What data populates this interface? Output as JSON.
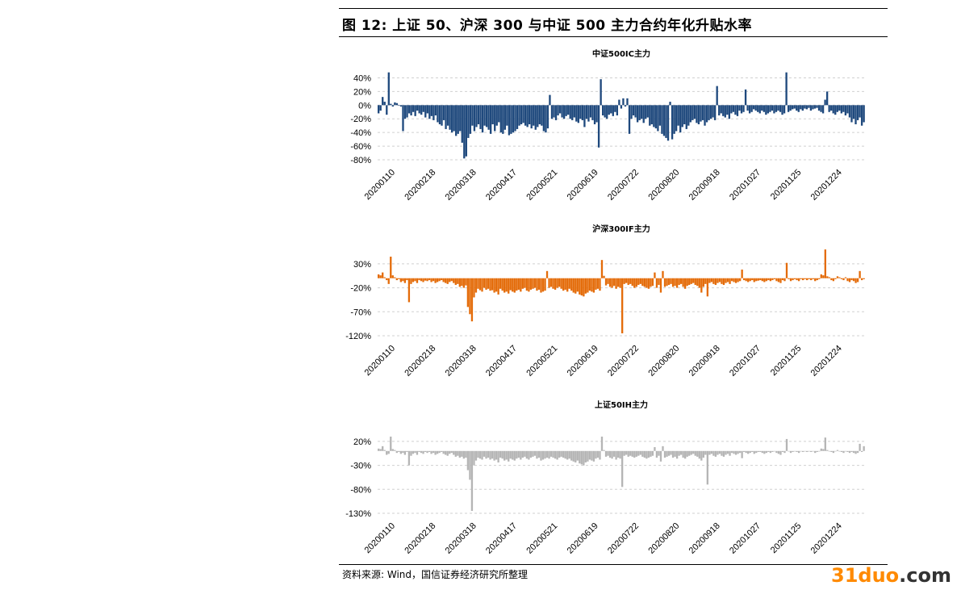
{
  "figure": {
    "title": "图 12: 上证 50、沪深 300 与中证 500 主力合约年化升贴水率",
    "source": "资料来源: Wind，国信证券经济研究所整理",
    "watermark": {
      "num": "31",
      "word": "duo",
      "tld": ".com"
    }
  },
  "chart_data": [
    {
      "type": "bar",
      "title": "中证500IC主力",
      "color": "#1f497d",
      "ylim": [
        -80,
        50
      ],
      "yticks": [
        "40%",
        "20%",
        "0%",
        "-20%",
        "-40%",
        "-60%",
        "-80%"
      ],
      "ytick_values": [
        40,
        20,
        0,
        -20,
        -40,
        -60,
        -80
      ],
      "xticks": [
        "20200110",
        "20200218",
        "20200318",
        "20200417",
        "20200521",
        "20200619",
        "20200722",
        "20200820",
        "20200918",
        "20201027",
        "20201125",
        "20201224"
      ],
      "grid": true,
      "values": [
        -12,
        -8,
        12,
        5,
        -14,
        48,
        2,
        -2,
        4,
        3,
        0,
        -2,
        -38,
        -20,
        -18,
        -12,
        -15,
        -10,
        -16,
        -8,
        -12,
        -14,
        -10,
        -18,
        -12,
        -20,
        -16,
        -22,
        -15,
        -25,
        -28,
        -30,
        -22,
        -35,
        -30,
        -36,
        -40,
        -38,
        -45,
        -42,
        -38,
        -55,
        -78,
        -75,
        -48,
        -42,
        -30,
        -38,
        -32,
        -28,
        -35,
        -40,
        -30,
        -32,
        -36,
        -42,
        -28,
        -38,
        -30,
        -25,
        -40,
        -42,
        -36,
        -30,
        -44,
        -42,
        -40,
        -38,
        -35,
        -30,
        -28,
        -26,
        -30,
        -32,
        -28,
        -34,
        -30,
        -36,
        -32,
        -28,
        -30,
        -38,
        -40,
        -34,
        15,
        -20,
        -18,
        -22,
        -15,
        -12,
        -18,
        -20,
        -16,
        -14,
        -20,
        -22,
        -18,
        -24,
        -26,
        -20,
        -22,
        -32,
        -20,
        -24,
        -18,
        -22,
        -28,
        -25,
        -62,
        38,
        -15,
        -18,
        -20,
        -14,
        -12,
        -16,
        -10,
        -15,
        8,
        -5,
        10,
        -2,
        10,
        -42,
        -20,
        -15,
        -18,
        -25,
        -22,
        -20,
        -26,
        -20,
        -18,
        -30,
        -28,
        -32,
        -34,
        -38,
        -30,
        -42,
        -45,
        -48,
        -52,
        5,
        -50,
        -42,
        -38,
        -30,
        -40,
        -32,
        -28,
        -35,
        -30,
        -25,
        -22,
        -20,
        -26,
        -28,
        -24,
        -22,
        -30,
        -25,
        -22,
        -20,
        -18,
        -22,
        28,
        -15,
        -12,
        -16,
        -18,
        -14,
        -20,
        -12,
        -10,
        -14,
        -16,
        -8,
        -12,
        -10,
        23,
        -8,
        -12,
        -10,
        -6,
        -8,
        -10,
        -12,
        -8,
        -10,
        -14,
        -12,
        -10,
        -8,
        -12,
        -10,
        -8,
        -10,
        -14,
        -12,
        48,
        -10,
        -8,
        -6,
        -5,
        -8,
        -10,
        -6,
        -8,
        -5,
        -6,
        -4,
        -8,
        -6,
        -5,
        -4,
        -8,
        -10,
        -12,
        8,
        20,
        -10,
        -8,
        -12,
        -14,
        -10,
        -8,
        -12,
        -10,
        -15,
        -12,
        -18,
        -25,
        -20,
        -28,
        -22,
        -18,
        -30,
        -25
      ]
    },
    {
      "type": "bar",
      "title": "沪深300IF主力",
      "color": "#e46c0a",
      "ylim": [
        -120,
        45
      ],
      "yticks": [
        "30%",
        "-20%",
        "-70%",
        "-120%"
      ],
      "ytick_values": [
        30,
        -20,
        -70,
        -120
      ],
      "xticks": [
        "20200110",
        "20200218",
        "20200318",
        "20200417",
        "20200521",
        "20200619",
        "20200722",
        "20200820",
        "20200918",
        "20201027",
        "20201125",
        "20201224"
      ],
      "grid": true,
      "values": [
        8,
        6,
        12,
        2,
        -4,
        -12,
        45,
        6,
        2,
        -4,
        -2,
        -8,
        -6,
        -10,
        -4,
        -50,
        -12,
        -8,
        -6,
        -10,
        -4,
        -6,
        -8,
        -5,
        -6,
        -4,
        -8,
        -6,
        -10,
        -8,
        -6,
        -4,
        -8,
        -10,
        -12,
        -8,
        -6,
        -10,
        -14,
        -12,
        -18,
        -16,
        -20,
        -15,
        -60,
        -75,
        -90,
        -40,
        -30,
        -22,
        -25,
        -28,
        -20,
        -24,
        -22,
        -26,
        -25,
        -30,
        -28,
        -34,
        -22,
        -26,
        -30,
        -28,
        -32,
        -25,
        -28,
        -30,
        -26,
        -24,
        -28,
        -22,
        -20,
        -26,
        -28,
        -24,
        -22,
        -20,
        -26,
        -24,
        -30,
        -28,
        -26,
        15,
        -20,
        -18,
        -22,
        -24,
        -20,
        -18,
        -22,
        -26,
        -24,
        -28,
        -22,
        -26,
        -30,
        -32,
        -28,
        -34,
        -36,
        -38,
        -32,
        -30,
        -26,
        -28,
        -30,
        -24,
        -22,
        -26,
        38,
        5,
        -15,
        -12,
        -18,
        -20,
        -16,
        -22,
        -18,
        -20,
        -115,
        -12,
        -10,
        -14,
        -12,
        -16,
        -20,
        -18,
        -14,
        -12,
        -16,
        -18,
        -20,
        -22,
        -18,
        -16,
        12,
        -20,
        -14,
        -30,
        15,
        -18,
        -16,
        -14,
        -12,
        -18,
        -16,
        -20,
        -14,
        -12,
        -18,
        -22,
        -16,
        -14,
        -12,
        -10,
        -14,
        -16,
        -20,
        -30,
        -18,
        -12,
        -38,
        -10,
        -8,
        -12,
        -14,
        -10,
        -8,
        -12,
        -14,
        -10,
        -8,
        -12,
        -6,
        -8,
        -10,
        -8,
        -6,
        18,
        -4,
        -6,
        -8,
        -6,
        -4,
        -8,
        -6,
        -5,
        -4,
        -6,
        -8,
        -6,
        -4,
        -6,
        -4,
        -2,
        -6,
        -8,
        -10,
        -4,
        -6,
        32,
        -2,
        -6,
        -4,
        -2,
        -4,
        -6,
        -2,
        -4,
        -2,
        -4,
        -2,
        -4,
        -2,
        -6,
        -4,
        -2,
        8,
        6,
        60,
        4,
        2,
        -4,
        -6,
        -2,
        4,
        2,
        -2,
        -4,
        2,
        -6,
        -8,
        -4,
        -6,
        -10,
        -8,
        15,
        -4,
        -2
      ]
    },
    {
      "type": "bar",
      "title": "上证50IH主力",
      "color": "#b5b5b5",
      "ylim": [
        -130,
        35
      ],
      "yticks": [
        "20%",
        "-30%",
        "-80%",
        "-130%"
      ],
      "ytick_values": [
        20,
        -30,
        -80,
        -130
      ],
      "xticks": [
        "20200110",
        "20200218",
        "20200318",
        "20200417",
        "20200521",
        "20200619",
        "20200722",
        "20200820",
        "20200918",
        "20201027",
        "20201125",
        "20201224"
      ],
      "grid": true,
      "values": [
        5,
        4,
        10,
        2,
        -8,
        -6,
        30,
        4,
        2,
        -4,
        -2,
        -6,
        -4,
        -8,
        -2,
        -30,
        -10,
        -6,
        -4,
        -8,
        -2,
        -4,
        -6,
        -2,
        -4,
        -2,
        -6,
        -4,
        -8,
        -6,
        -4,
        -2,
        -6,
        -8,
        -10,
        -6,
        -4,
        -8,
        -12,
        -10,
        -14,
        -12,
        -16,
        -14,
        -40,
        -60,
        -125,
        -30,
        -20,
        -14,
        -16,
        -18,
        -12,
        -16,
        -14,
        -18,
        -16,
        -20,
        -18,
        -24,
        -14,
        -16,
        -20,
        -18,
        -22,
        -16,
        -18,
        -20,
        -16,
        -14,
        -18,
        -14,
        -12,
        -16,
        -18,
        -14,
        -12,
        -10,
        -16,
        -14,
        -20,
        -18,
        -16,
        -14,
        -16,
        -12,
        -14,
        -16,
        -18,
        -14,
        -12,
        -14,
        -16,
        -18,
        -16,
        -20,
        -22,
        -24,
        -20,
        -26,
        -28,
        -30,
        -24,
        -22,
        -18,
        -20,
        -22,
        -16,
        -14,
        -18,
        30,
        2,
        -12,
        -10,
        -14,
        -16,
        -12,
        -18,
        -14,
        -16,
        -75,
        -10,
        -8,
        -12,
        -10,
        -12,
        -14,
        -12,
        -10,
        -8,
        -12,
        -14,
        -16,
        -14,
        -12,
        -10,
        8,
        -14,
        -10,
        -22,
        10,
        -14,
        -12,
        -10,
        -8,
        -14,
        -12,
        -16,
        -10,
        -8,
        -14,
        -16,
        -12,
        -10,
        -8,
        -6,
        -10,
        -12,
        -16,
        -20,
        -14,
        -8,
        -70,
        -8,
        -6,
        -10,
        -12,
        -8,
        -6,
        -10,
        -12,
        -8,
        -6,
        -10,
        -4,
        -6,
        -8,
        -6,
        -4,
        -15,
        -2,
        -4,
        -6,
        -4,
        -2,
        -6,
        -4,
        -2,
        -2,
        -4,
        -6,
        -4,
        -2,
        -4,
        -2,
        0,
        -4,
        -6,
        -8,
        -2,
        -4,
        25,
        0,
        -4,
        -2,
        0,
        -2,
        -4,
        0,
        -2,
        0,
        -2,
        0,
        -2,
        0,
        -4,
        -2,
        0,
        5,
        4,
        28,
        2,
        0,
        -2,
        -4,
        0,
        2,
        0,
        -2,
        -4,
        0,
        -2,
        -4,
        -2,
        -4,
        -6,
        -4,
        15,
        -2,
        10
      ]
    }
  ]
}
